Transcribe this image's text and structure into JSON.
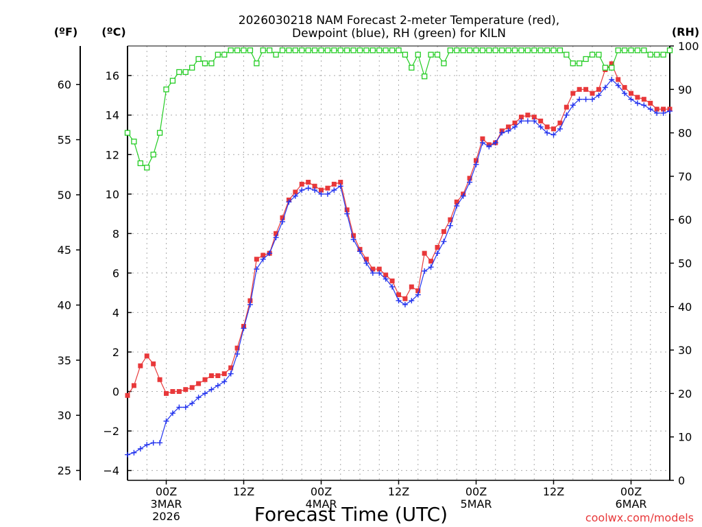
{
  "title": {
    "line1": "2026030218 NAM Forecast 2-meter Temperature (red),",
    "line2": "Dewpoint (blue), RH (green) for KILN"
  },
  "credit": "coolwx.com/models",
  "colors": {
    "temperature": "#e8383a",
    "dewpoint": "#2233ee",
    "rh": "#22cc22",
    "grid": "#aaaaaa"
  },
  "chart_data": {
    "type": "line",
    "title": "2026030218 NAM Forecast 2-meter Temperature (red), Dewpoint (blue), RH (green) for KILN",
    "xlabel": "Forecast Time (UTC)",
    "ylabel_left_f": "(ºF)",
    "ylabel_left_c": "(ºC)",
    "ylabel_right": "(RH)",
    "x_unit": "forecast hour",
    "x_step_hours": 1,
    "xlim": [
      0,
      84
    ],
    "ylim_c": [
      -4.5,
      17.5
    ],
    "ylim_rh": [
      0,
      100
    ],
    "ylim_f": [
      24.1,
      63.5
    ],
    "grid": true,
    "c_ticks": [
      -4,
      -2,
      0,
      2,
      4,
      6,
      8,
      10,
      12,
      14,
      16
    ],
    "c_tick_labels": [
      "−4",
      "−2",
      "0",
      "2",
      "4",
      "6",
      "8",
      "10",
      "12",
      "14",
      "16"
    ],
    "f_ticks": [
      "25",
      "30",
      "35",
      "40",
      "45",
      "50",
      "55",
      "60"
    ],
    "rh_ticks": [
      "0",
      "10",
      "20",
      "30",
      "40",
      "50",
      "60",
      "70",
      "80",
      "90",
      "100"
    ],
    "x_ticks": [
      {
        "hour": 6,
        "lines": [
          "00Z",
          "3MAR",
          "2026"
        ]
      },
      {
        "hour": 18,
        "lines": [
          "12Z"
        ]
      },
      {
        "hour": 30,
        "lines": [
          "00Z",
          "4MAR"
        ]
      },
      {
        "hour": 42,
        "lines": [
          "12Z"
        ]
      },
      {
        "hour": 54,
        "lines": [
          "00Z",
          "5MAR"
        ]
      },
      {
        "hour": 66,
        "lines": [
          "12Z"
        ]
      },
      {
        "hour": 78,
        "lines": [
          "00Z",
          "6MAR"
        ]
      }
    ],
    "series": [
      {
        "name": "Temperature",
        "unit": "°C",
        "color": "#e8383a",
        "marker": "square",
        "values": [
          -0.2,
          0.3,
          1.3,
          1.8,
          1.4,
          0.6,
          -0.1,
          0.0,
          0.0,
          0.1,
          0.2,
          0.4,
          0.6,
          0.8,
          0.8,
          0.9,
          1.2,
          2.2,
          3.3,
          4.6,
          6.7,
          6.9,
          7.0,
          8.0,
          8.8,
          9.7,
          10.1,
          10.5,
          10.6,
          10.4,
          10.2,
          10.3,
          10.5,
          10.6,
          9.2,
          7.9,
          7.2,
          6.7,
          6.2,
          6.2,
          5.9,
          5.6,
          4.9,
          4.7,
          5.3,
          5.1,
          7.0,
          6.6,
          7.3,
          8.1,
          8.7,
          9.6,
          10.0,
          10.8,
          11.7,
          12.8,
          12.5,
          12.6,
          13.2,
          13.4,
          13.6,
          13.9,
          14.0,
          13.9,
          13.7,
          13.4,
          13.3,
          13.6,
          14.4,
          15.1,
          15.3,
          15.3,
          15.1,
          15.3,
          16.3,
          16.6,
          15.8,
          15.4,
          15.1,
          14.9,
          14.8,
          14.6,
          14.3,
          14.3,
          14.3
        ]
      },
      {
        "name": "Dewpoint",
        "unit": "°C",
        "color": "#2233ee",
        "marker": "plus",
        "values": [
          -3.2,
          -3.1,
          -2.9,
          -2.7,
          -2.6,
          -2.6,
          -1.5,
          -1.1,
          -0.8,
          -0.8,
          -0.6,
          -0.3,
          -0.1,
          0.1,
          0.3,
          0.5,
          0.9,
          1.9,
          3.2,
          4.4,
          6.2,
          6.7,
          7.0,
          7.8,
          8.6,
          9.6,
          9.9,
          10.2,
          10.3,
          10.2,
          10.0,
          10.0,
          10.2,
          10.4,
          9.0,
          7.7,
          7.1,
          6.5,
          6.0,
          6.0,
          5.7,
          5.3,
          4.6,
          4.4,
          4.6,
          4.9,
          6.1,
          6.3,
          7.0,
          7.6,
          8.4,
          9.4,
          9.9,
          10.6,
          11.5,
          12.6,
          12.4,
          12.6,
          13.1,
          13.2,
          13.4,
          13.7,
          13.7,
          13.7,
          13.4,
          13.1,
          13.0,
          13.3,
          14.0,
          14.5,
          14.8,
          14.8,
          14.8,
          15.0,
          15.4,
          15.8,
          15.5,
          15.1,
          14.8,
          14.6,
          14.5,
          14.3,
          14.1,
          14.1,
          14.2
        ]
      },
      {
        "name": "RH",
        "unit": "%",
        "color": "#22cc22",
        "marker": "open-square",
        "values": [
          80,
          78,
          73,
          72,
          75,
          80,
          90,
          92,
          94,
          94,
          95,
          97,
          96,
          96,
          98,
          98,
          99,
          99,
          99,
          99,
          96,
          99,
          99,
          98,
          99,
          99,
          99,
          99,
          99,
          99,
          99,
          99,
          99,
          99,
          99,
          99,
          99,
          99,
          99,
          99,
          99,
          99,
          99,
          98,
          95,
          98,
          93,
          98,
          98,
          96,
          99,
          99,
          99,
          99,
          99,
          99,
          99,
          99,
          99,
          99,
          99,
          99,
          99,
          99,
          99,
          99,
          99,
          99,
          98,
          96,
          96,
          97,
          98,
          98,
          95,
          95,
          99,
          99,
          99,
          99,
          99,
          98,
          98,
          98,
          99
        ]
      }
    ]
  }
}
